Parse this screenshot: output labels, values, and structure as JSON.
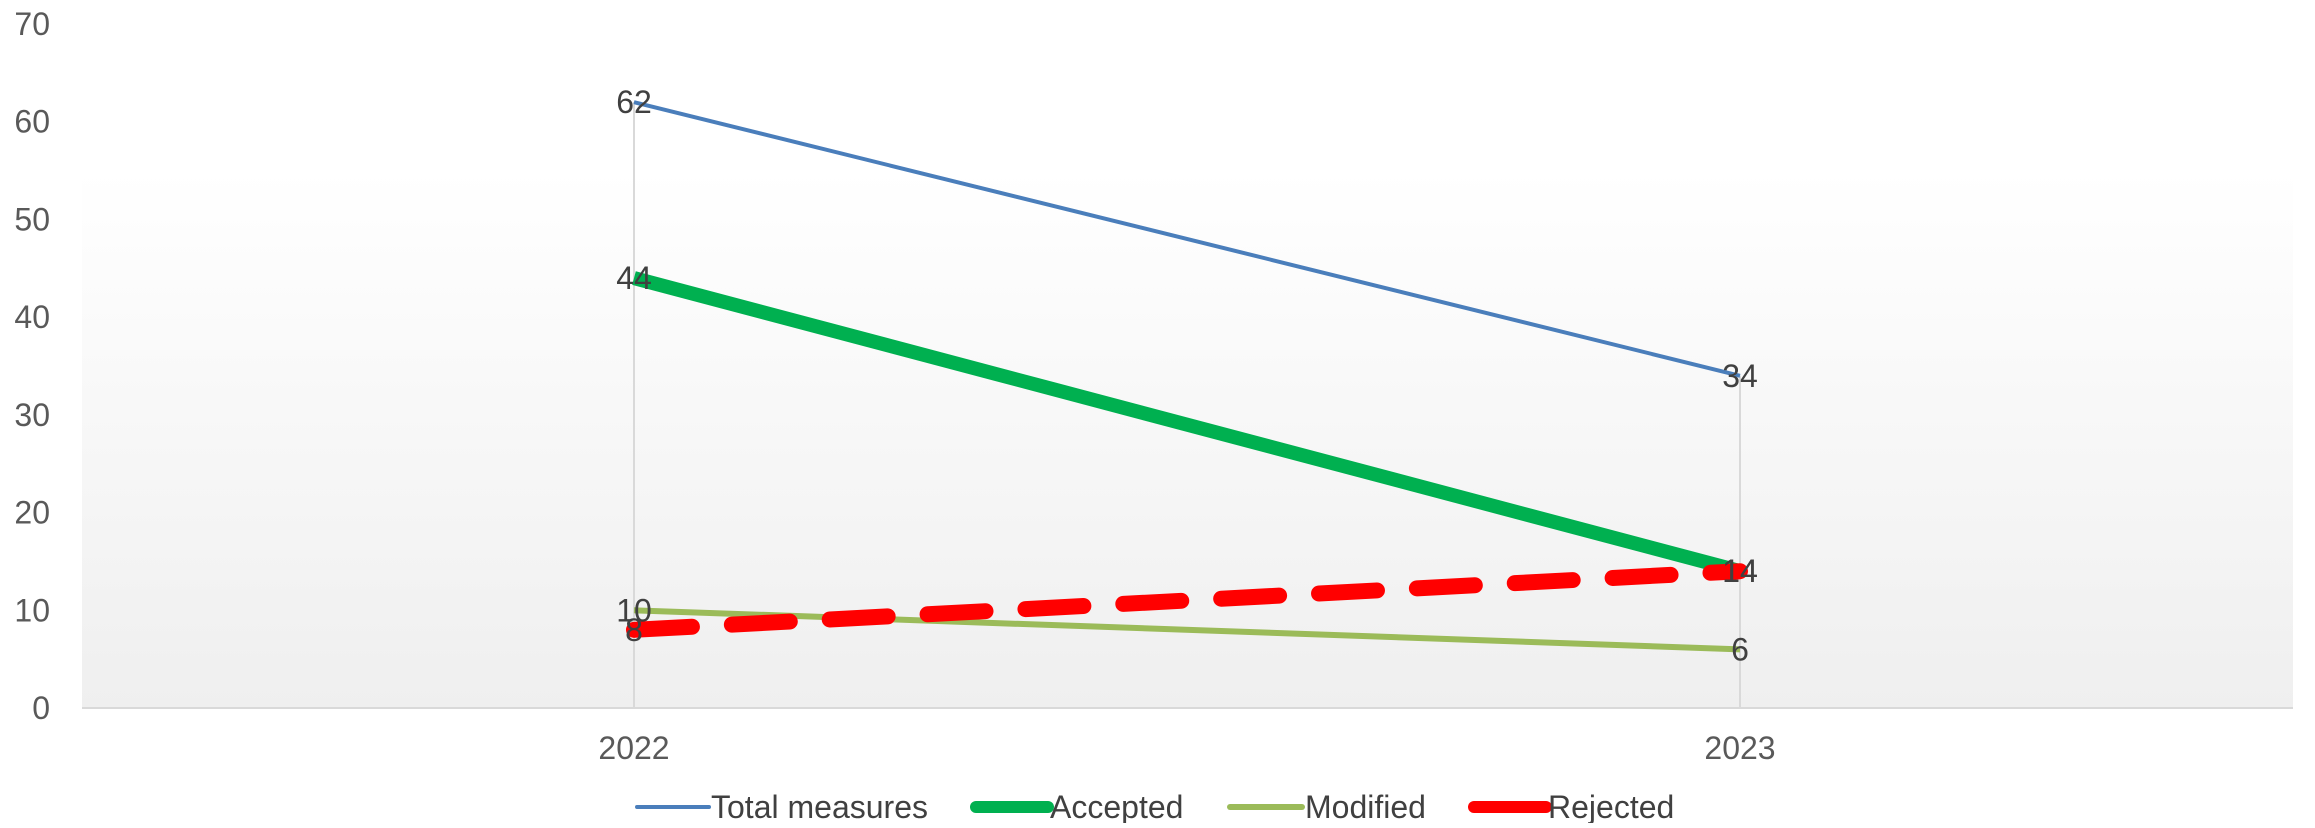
{
  "chart_data": {
    "type": "line",
    "categories": [
      "2022",
      "2023"
    ],
    "ylim": [
      0,
      70
    ],
    "yticks": [
      0,
      10,
      20,
      30,
      40,
      50,
      60,
      70
    ],
    "grid": "vertical lines at categories",
    "legend_position": "bottom",
    "series": [
      {
        "name": "Total measures",
        "values": [
          62,
          34
        ],
        "color": "#4a7ebb",
        "style": "solid-thin"
      },
      {
        "name": "Accepted",
        "values": [
          44,
          14
        ],
        "color": "#00b050",
        "style": "solid-thick"
      },
      {
        "name": "Modified",
        "values": [
          10,
          6
        ],
        "color": "#9bbb59",
        "style": "solid-medium"
      },
      {
        "name": "Rejected",
        "values": [
          8,
          14
        ],
        "color": "#ff0000",
        "style": "dashed-thick"
      }
    ],
    "data_labels": [
      {
        "series": "Total measures",
        "labels": [
          "62",
          "34"
        ]
      },
      {
        "series": "Accepted",
        "labels": [
          "44",
          "14"
        ]
      },
      {
        "series": "Modified",
        "labels": [
          "10",
          "6"
        ]
      },
      {
        "series": "Rejected",
        "labels": [
          "8",
          "14"
        ]
      }
    ]
  }
}
